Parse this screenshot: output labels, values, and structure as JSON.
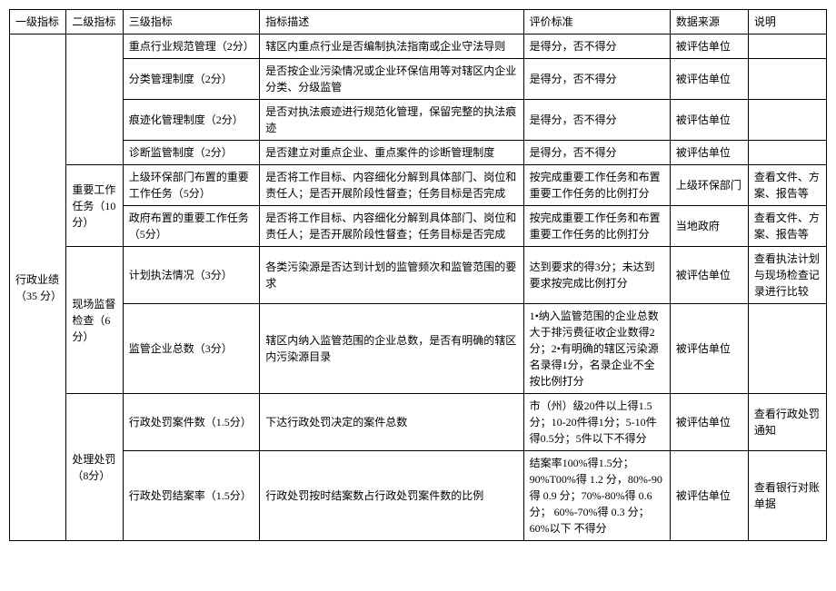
{
  "headers": {
    "l1": "一级指标",
    "l2": "二级指标",
    "l3": "三级指标",
    "desc": "指标描述",
    "criteria": "评价标准",
    "source": "数据来源",
    "note": "说明"
  },
  "l1_label": "行政业绩（35 分）",
  "groups": [
    {
      "l2": "",
      "rows": [
        {
          "l3": "重点行业规范管理（2分）",
          "desc": "辖区内重点行业是否编制执法指南或企业守法导则",
          "criteria": "是得分，否不得分",
          "source": "被评估单位",
          "note": ""
        },
        {
          "l3": "分类管理制度（2分）",
          "desc": "是否按企业污染情况或企业环保信用等对辖区内企业分类、分级监管",
          "criteria": "是得分，否不得分",
          "source": "被评估单位",
          "note": ""
        },
        {
          "l3": "痕迹化管理制度（2分）",
          "desc": "是否对执法痕迹进行规范化管理，保留完整的执法痕迹",
          "criteria": "是得分，否不得分",
          "source": "被评估单位",
          "note": ""
        },
        {
          "l3": "诊断监管制度（2分）",
          "desc": "是否建立对重点企业、重点案件的诊断管理制度",
          "criteria": "是得分，否不得分",
          "source": "被评估单位",
          "note": ""
        }
      ]
    },
    {
      "l2": "重要工作任务（10分）",
      "rows": [
        {
          "l3": "上级环保部门布置的重要工作任务（5分）",
          "desc": "是否将工作目标、内容细化分解到具体部门、岗位和责任人；是否开展阶段性督查；任务目标是否完成",
          "criteria": "按完成重要工作任务和布置重要工作任务的比例打分",
          "source": "上级环保部门",
          "note": "查看文件、方案、报告等"
        },
        {
          "l3": "政府布置的重要工作任务（5分）",
          "desc": "是否将工作目标、内容细化分解到具体部门、岗位和责任人；是否开展阶段性督查；任务目标是否完成",
          "criteria": "按完成重要工作任务和布置重要工作任务的比例打分",
          "source": "当地政府",
          "note": "查看文件、方案、报告等"
        }
      ]
    },
    {
      "l2": "现场监督检查（6分）",
      "rows": [
        {
          "l3": "计划执法情况（3分）",
          "desc": "各类污染源是否达到计划的监管频次和监管范围的要求",
          "criteria": "达到要求的得3分；未达到要求按完成比例打分",
          "source": "被评估单位",
          "note": "查看执法计划与现场检查记录进行比较"
        },
        {
          "l3": "监管企业总数（3分）",
          "desc": "辖区内纳入监管范围的企业总数，是否有明确的辖区内污染源目录",
          "criteria": "1•纳入监管范围的企业总数大于排污费征收企业数得2分；2•有明确的辖区污染源名录得1分，名录企业不全按比例打分",
          "source": "被评估单位",
          "note": ""
        }
      ]
    },
    {
      "l2": "处理处罚（8分）",
      "rows": [
        {
          "l3": "行政处罚案件数（1.5分）",
          "desc": "下达行政处罚决定的案件总数",
          "criteria": "市（州）级20件以上得1.5分；10-20件得1分；5-10件得0.5分；5件以下不得分",
          "source": "被评估单位",
          "note": "查看行政处罚通知"
        },
        {
          "l3": "行政处罚结案率（1.5分）",
          "desc": "行政处罚按时结案数占行政处罚案件数的比例",
          "criteria": "结案率100%得1.5分；90%T00%得 1.2 分，80%-90得 0.9 分；70%-80%得 0.6分； 60%-70%得 0.3 分；60%以下 不得分",
          "source": "被评估单位",
          "note": "查看银行对账单据"
        }
      ]
    }
  ]
}
